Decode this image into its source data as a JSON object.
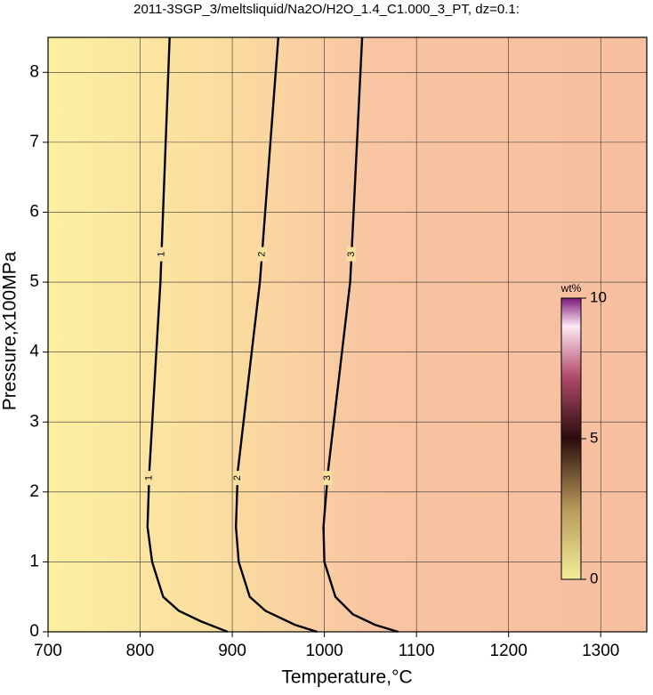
{
  "chart_data": {
    "type": "contour",
    "title": "2011-3SGP_3/meltsliquid/Na2O/H2O_1.4_C1.000_3_PT, dz=0.1:",
    "x_label": "Temperature,°C",
    "y_label": "Pressure,x100MPa",
    "xlim": [
      700,
      1350
    ],
    "xticks": [
      700,
      800,
      900,
      1000,
      1100,
      1200,
      1300
    ],
    "ylim": [
      0,
      8.5
    ],
    "yticks": [
      0,
      1,
      2,
      3,
      4,
      5,
      6,
      7,
      8
    ],
    "grid": true,
    "contours": [
      {
        "level": 1,
        "x": [
          832,
          822,
          810,
          808,
          813,
          825,
          842,
          866,
          895
        ],
        "y": [
          8.5,
          5,
          2.3,
          1.5,
          1,
          0.5,
          0.3,
          0.15,
          0
        ]
      },
      {
        "level": 2,
        "x": [
          950,
          930,
          906,
          904,
          907,
          919,
          936,
          968,
          992
        ],
        "y": [
          8.5,
          5,
          2.3,
          1.5,
          1,
          0.5,
          0.3,
          0.1,
          0
        ]
      },
      {
        "level": 3,
        "x": [
          1041,
          1028,
          1004,
          999,
          1000,
          1012,
          1031,
          1055,
          1080
        ],
        "y": [
          8.5,
          5,
          2.3,
          1.5,
          1,
          0.5,
          0.25,
          0.1,
          0
        ]
      }
    ],
    "colorbar": {
      "label": "wt%",
      "lim": [
        0,
        10
      ],
      "ticks": [
        0,
        5,
        10
      ]
    }
  }
}
